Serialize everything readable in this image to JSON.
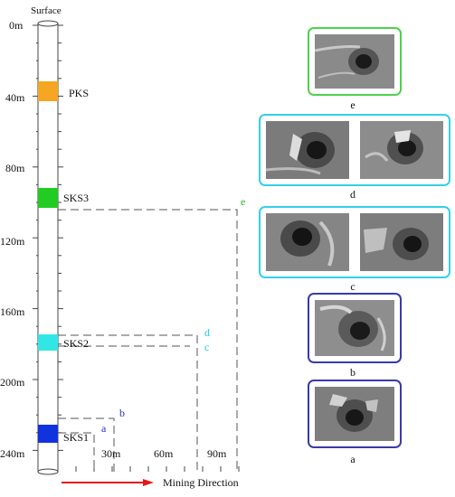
{
  "borehole": {
    "top_label": "Surface",
    "depth_labels": [
      "0m",
      "40m",
      "80m",
      "120m",
      "160m",
      "200m",
      "240m"
    ],
    "seams": [
      {
        "name": "PKS",
        "color": "#f5a623"
      },
      {
        "name": "SKS3",
        "color": "#22cc22"
      },
      {
        "name": "SKS2",
        "color": "#33e6e6"
      },
      {
        "name": "SKS1",
        "color": "#1133dd"
      }
    ]
  },
  "horizontal_axis": {
    "distance_labels": [
      "30m",
      "60m",
      "90m"
    ],
    "direction_label": "Mining Direction",
    "arrow_color": "#e11919"
  },
  "positions": [
    {
      "id": "a",
      "color": "#2233cc"
    },
    {
      "id": "b",
      "color": "#2233cc"
    },
    {
      "id": "c",
      "color": "#22c8e6"
    },
    {
      "id": "d",
      "color": "#22c8e6"
    },
    {
      "id": "e",
      "color": "#22bb22"
    }
  ],
  "photo_panels": [
    {
      "caption": "e",
      "border_color": "#4cd24c",
      "photos": 1
    },
    {
      "caption": "d",
      "border_color": "#33d0e8",
      "photos": 2
    },
    {
      "caption": "c",
      "border_color": "#33d0e8",
      "photos": 2
    },
    {
      "caption": "b",
      "border_color": "#3a3aa8",
      "photos": 1
    },
    {
      "caption": "a",
      "border_color": "#3a3aa8",
      "photos": 1
    }
  ]
}
